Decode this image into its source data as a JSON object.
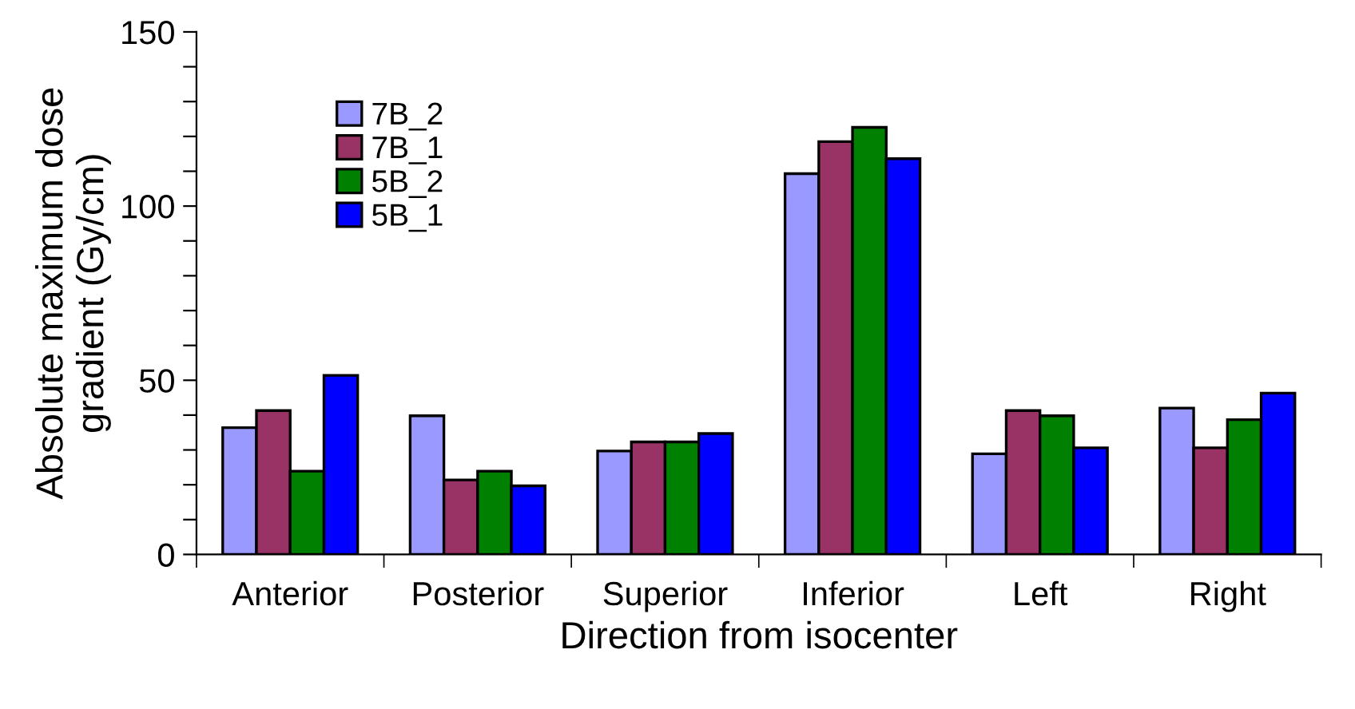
{
  "chart_data": {
    "type": "bar",
    "xlabel": "Direction from isocenter",
    "ylabel": "Absolute maximum dose\ngradient (Gy/cm)",
    "categories": [
      "Anterior",
      "Posterior",
      "Superior",
      "Inferior",
      "Left",
      "Right"
    ],
    "series": [
      {
        "name": "7B_2",
        "color": "#9999ff",
        "values": [
          36.4,
          39.8,
          29.7,
          109.3,
          28.9,
          42.0
        ]
      },
      {
        "name": "7B_1",
        "color": "#993366",
        "values": [
          41.3,
          21.4,
          32.3,
          118.5,
          41.3,
          30.6
        ]
      },
      {
        "name": "5B_2",
        "color": "#008000",
        "values": [
          23.9,
          23.9,
          32.3,
          122.6,
          39.8,
          38.7
        ]
      },
      {
        "name": "5B_1",
        "color": "#0000ff",
        "values": [
          51.4,
          19.7,
          34.7,
          113.6,
          30.6,
          46.3
        ]
      }
    ],
    "ylim": [
      0,
      150
    ],
    "yticks": [
      0,
      {
        "value": 10,
        "label": null
      },
      {
        "value": 20,
        "label": null
      },
      {
        "value": 30,
        "label": null
      },
      {
        "value": 40,
        "label": null
      },
      50,
      {
        "value": 60,
        "label": null
      },
      {
        "value": 70,
        "label": null
      },
      {
        "value": 80,
        "label": null
      },
      {
        "value": 90,
        "label": null
      },
      100,
      {
        "value": 110,
        "label": null
      },
      {
        "value": 120,
        "label": null
      },
      {
        "value": 130,
        "label": null
      },
      {
        "value": 140,
        "label": null
      },
      150
    ],
    "legend": "top left",
    "grid": false
  }
}
